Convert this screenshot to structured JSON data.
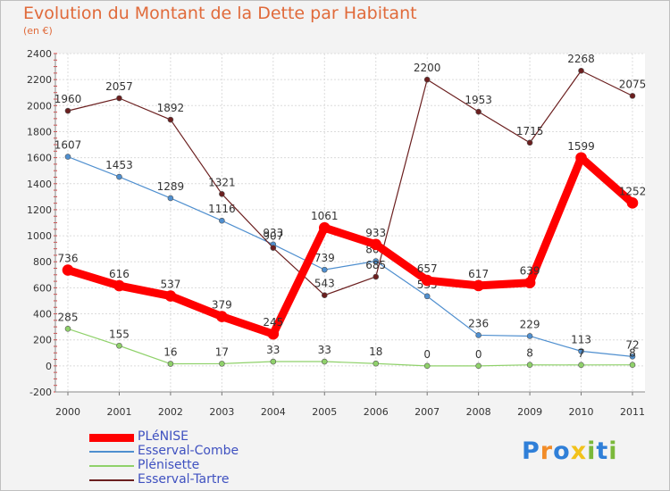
{
  "chart_data": {
    "type": "line",
    "title": "Evolution du Montant de la Dette par Habitant",
    "subtitle": "(en €)",
    "x": [
      "2000",
      "2001",
      "2002",
      "2003",
      "2004",
      "2005",
      "2006",
      "2007",
      "2008",
      "2009",
      "2010",
      "2011"
    ],
    "ylim": [
      -200,
      2400
    ],
    "yticks": [
      -200,
      0,
      200,
      400,
      600,
      800,
      1000,
      1200,
      1400,
      1600,
      1800,
      2000,
      2200,
      2400
    ],
    "grid": true,
    "legend_position": "bottom-left",
    "series": [
      {
        "name": "PLéNISE",
        "color": "#ff0000",
        "emphasis": true,
        "values": [
          736,
          616,
          537,
          379,
          245,
          1061,
          933,
          657,
          617,
          639,
          1599,
          1252
        ]
      },
      {
        "name": "Esserval-Combe",
        "color": "#4f8fcf",
        "values": [
          1607,
          1453,
          1289,
          1116,
          933,
          739,
          805,
          535,
          236,
          229,
          113,
          72
        ]
      },
      {
        "name": "Plénisette",
        "color": "#8fd16a",
        "values": [
          285,
          155,
          16,
          17,
          33,
          33,
          18,
          0,
          0,
          8,
          7,
          8
        ]
      },
      {
        "name": "Esserval-Tartre",
        "color": "#6b1f1f",
        "values": [
          1960,
          2057,
          1892,
          1321,
          907,
          543,
          685,
          2200,
          1953,
          1715,
          2268,
          2075
        ]
      }
    ]
  },
  "logo": {
    "letters": [
      "P",
      "r",
      "o",
      "x",
      "i",
      "t",
      "i"
    ],
    "colors": [
      "#2f7fd8",
      "#f28c28",
      "#2f7fd8",
      "#f2c21b",
      "#7ab83a",
      "#2f7fd8",
      "#7ab83a"
    ]
  }
}
